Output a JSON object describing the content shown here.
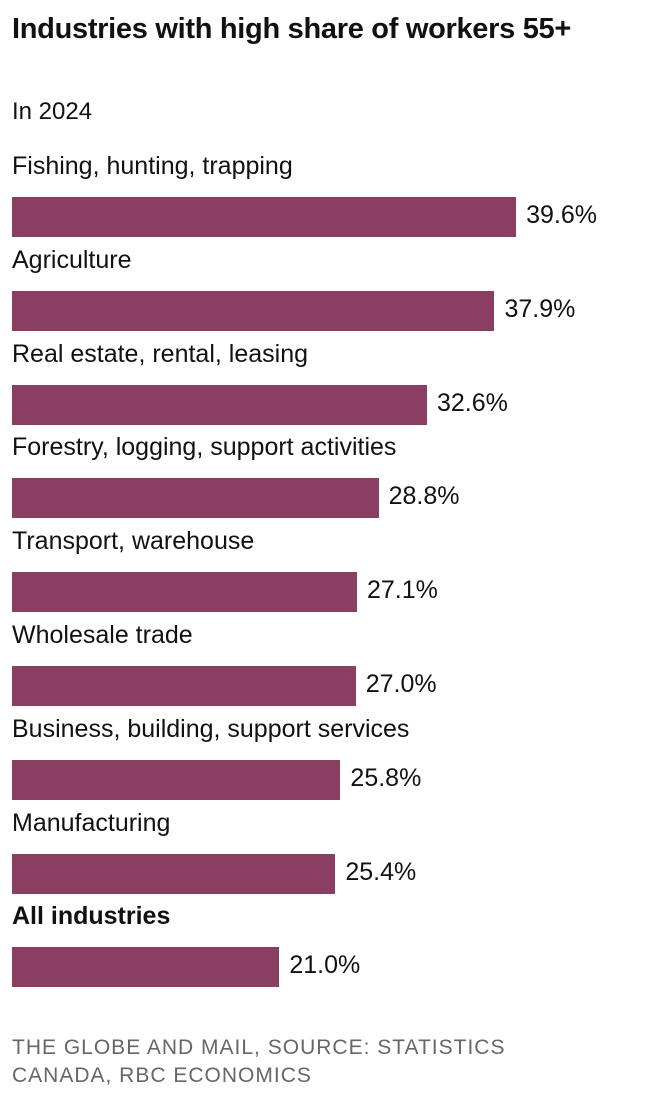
{
  "chart_data": {
    "type": "bar",
    "orientation": "horizontal",
    "title": "Industries with high share of workers 55+",
    "subtitle": "In 2024",
    "categories": [
      "Fishing, hunting, trapping",
      "Agriculture",
      "Real estate, rental, leasing",
      "Forestry, logging, support activities",
      "Transport, warehouse",
      "Wholesale trade",
      "Business, building, support services",
      "Manufacturing",
      "All industries"
    ],
    "values": [
      39.6,
      37.9,
      32.6,
      28.8,
      27.1,
      27.0,
      25.8,
      25.4,
      21.0
    ],
    "value_labels": [
      "39.6%",
      "37.9%",
      "32.6%",
      "28.8%",
      "27.1%",
      "27.0%",
      "25.8%",
      "25.4%",
      "21.0%"
    ],
    "bold_categories": [
      "All industries"
    ],
    "bar_color": "#8a3f62",
    "grid": false,
    "xlabel": "",
    "ylabel": ""
  },
  "footer": "THE GLOBE AND MAIL, SOURCE: STATISTICS CANADA, RBC ECONOMICS"
}
